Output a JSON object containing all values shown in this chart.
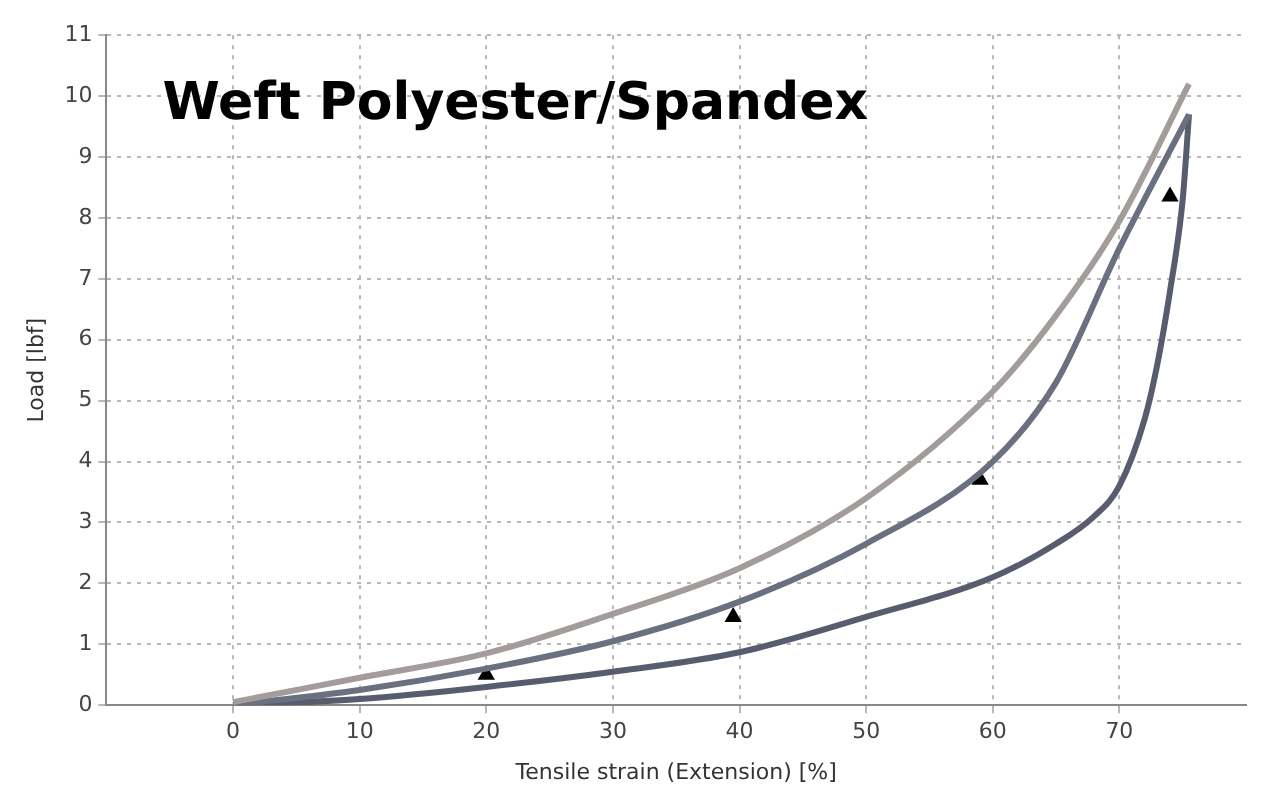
{
  "chart_data": {
    "type": "line",
    "title": "Weft Polyester/Spandex",
    "xlabel": "Tensile strain (Extension) [%]",
    "ylabel": "Load [lbf]",
    "xlim": [
      -10,
      80
    ],
    "xticks": [
      0,
      10,
      20,
      30,
      40,
      50,
      60,
      70
    ],
    "ylim": [
      0,
      11
    ],
    "yticks": [
      0,
      1,
      2,
      3,
      4,
      5,
      6,
      7,
      8,
      9,
      10,
      11
    ],
    "grid": true,
    "legend": false,
    "line_style": "solid",
    "series": [
      {
        "type": "line",
        "color": "#a39c9a",
        "marker": "none",
        "x": [
          0,
          10,
          20,
          30,
          40,
          50,
          60,
          65,
          70,
          75.5
        ],
        "values": [
          0.05,
          0.45,
          0.85,
          1.5,
          2.25,
          3.4,
          5.15,
          6.4,
          7.95,
          10.2
        ]
      },
      {
        "type": "line",
        "color": "#6b7080",
        "marker": "none",
        "x": [
          0,
          10,
          20,
          30,
          40,
          50,
          60,
          65,
          70,
          75.5
        ],
        "values": [
          0,
          0.25,
          0.6,
          1.05,
          1.7,
          2.65,
          4.0,
          5.3,
          7.5,
          9.7
        ]
      },
      {
        "type": "line",
        "color": "#585c6e",
        "marker": "none",
        "x": [
          75.5,
          75,
          74,
          73,
          72,
          70,
          68,
          65,
          60,
          50,
          40,
          30,
          20,
          10,
          0
        ],
        "values": [
          9.7,
          8.3,
          6.8,
          5.6,
          4.7,
          3.6,
          3.1,
          2.65,
          2.1,
          1.45,
          0.87,
          0.55,
          0.3,
          0.1,
          0
        ]
      },
      {
        "type": "scatter",
        "color": "#000000",
        "marker": "triangle",
        "x": [
          20,
          39.5,
          59,
          74
        ],
        "values": [
          0.5,
          1.45,
          3.7,
          8.35
        ]
      }
    ]
  }
}
